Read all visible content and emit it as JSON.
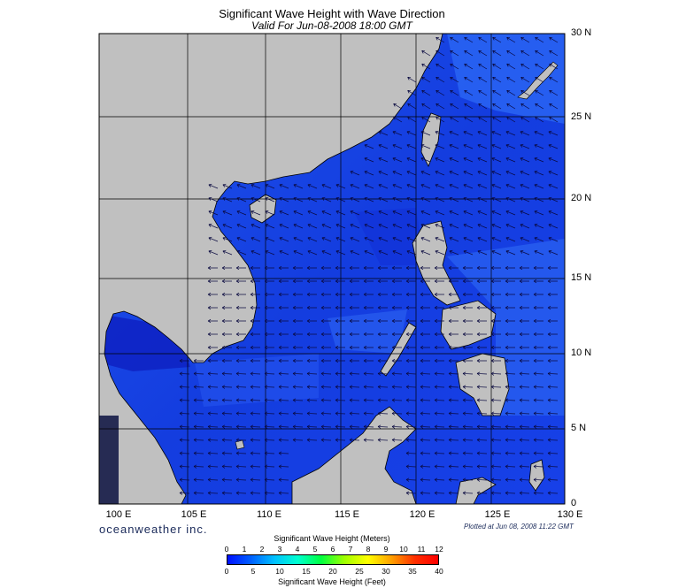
{
  "header": {
    "title": "Significant Wave Height with Wave Direction",
    "subtitle": "Valid For Jun-08-2008 18:00 GMT"
  },
  "axes": {
    "lat_labels": [
      "30 N",
      "25 N",
      "20 N",
      "15 N",
      "10 N",
      "5 N",
      "0"
    ],
    "lon_labels": [
      "100 E",
      "105 E",
      "110 E",
      "115 E",
      "120 E",
      "125 E",
      "130 E"
    ],
    "lat_range": [
      0,
      30
    ],
    "lon_range": [
      100,
      130
    ],
    "grid": true
  },
  "footer": {
    "brand": "oceanweather inc.",
    "plotted": "Plotted at Jun 08, 2008 11:22 GMT"
  },
  "colorbar": {
    "title_meters": "Significant Wave Height (Meters)",
    "title_feet": "Significant Wave Height (Feet)",
    "meter_ticks": [
      "0",
      "1",
      "2",
      "3",
      "4",
      "5",
      "6",
      "7",
      "8",
      "9",
      "10",
      "11",
      "12"
    ],
    "feet_ticks": [
      "0",
      "5",
      "10",
      "15",
      "20",
      "25",
      "30",
      "35",
      "40"
    ],
    "colors": [
      "#0010ff",
      "#0060ff",
      "#00c0ff",
      "#00ffd0",
      "#00ff40",
      "#a0ff00",
      "#ffff00",
      "#ffa000",
      "#ff3000",
      "#ff0000"
    ]
  },
  "map_colors": {
    "land": "#c0c0c0",
    "sea_dark": "#0f2cdc",
    "sea_mid": "#1a4af0",
    "sea_light": "#2e6cf5",
    "arrow": "#0a0a40"
  }
}
